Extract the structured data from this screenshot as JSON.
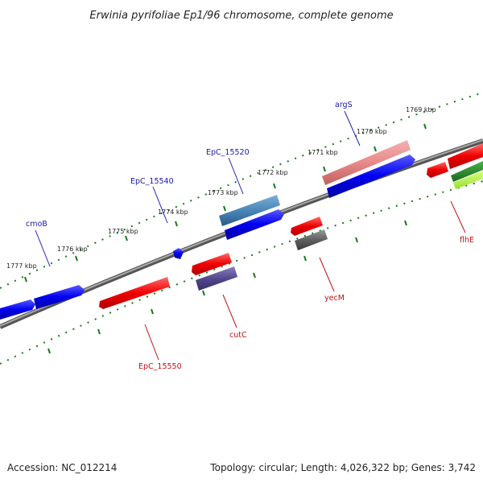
{
  "title": "Erwinia pyrifoliae Ep1/96 chromosome, complete genome",
  "accession": "Accession: NC_012214",
  "summary": "Topology: circular; Length: 4,026,322 bp; Genes: 3,742",
  "kbp_labels": [
    "1769 kbp",
    "1770 kbp",
    "1771 kbp",
    "1772 kbp",
    "1773 kbp",
    "1774 kbp",
    "1775 kbp",
    "1776 kbp",
    "1777 kbp"
  ],
  "genes_forward": [
    {
      "label": "argS",
      "color": "#1a1aa8"
    },
    {
      "label": "EpC_15520",
      "color": "#1a1aa8"
    },
    {
      "label": "EpC_15540",
      "color": "#1a1aa8"
    },
    {
      "label": "cmoB",
      "color": "#1a1aa8"
    }
  ],
  "genes_reverse": [
    {
      "label": "flhE",
      "color": "#c01010"
    },
    {
      "label": "yecM",
      "color": "#c01010"
    },
    {
      "label": "cutC",
      "color": "#c01010"
    },
    {
      "label": "EpC_15550",
      "color": "#c01010"
    }
  ],
  "colors": {
    "forward_strand": "#0a0af0",
    "reverse_strand": "#f01010",
    "tick": "#1a7a1a",
    "backbone": "#7a7a7a"
  }
}
